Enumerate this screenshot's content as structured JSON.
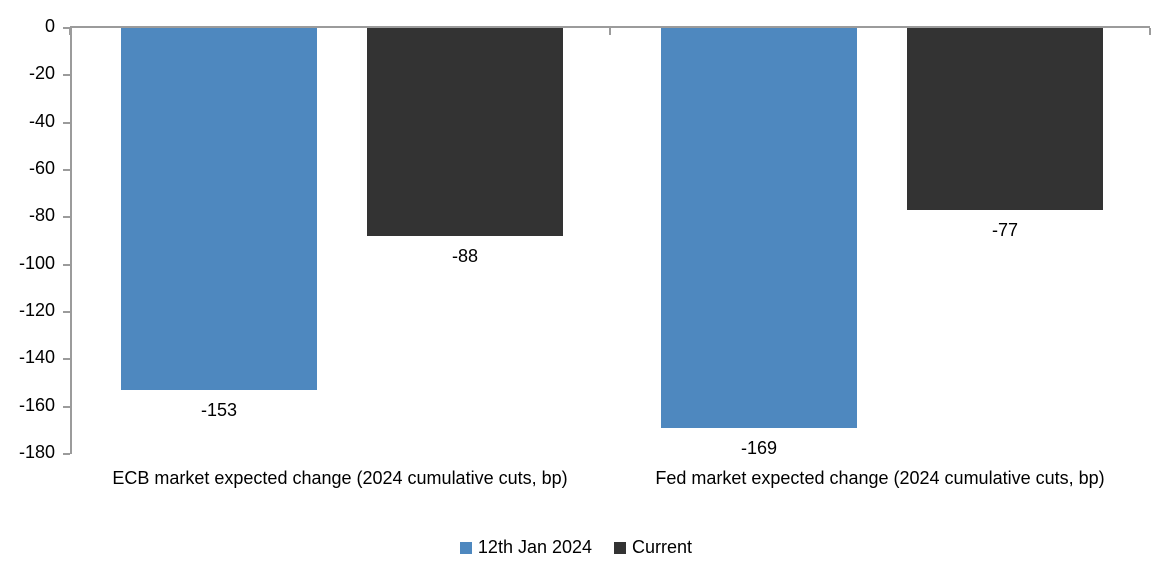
{
  "chart_data": {
    "type": "bar",
    "title": "",
    "categories": [
      "ECB market expected change (2024 cumulative cuts, bp)",
      "Fed market expected change (2024 cumulative cuts, bp)"
    ],
    "series": [
      {
        "name": "12th Jan 2024",
        "color": "#4E88BF",
        "values": [
          -153,
          -169
        ]
      },
      {
        "name": "Current",
        "color": "#333333",
        "values": [
          -88,
          -77
        ]
      }
    ],
    "ylim": [
      -180,
      0
    ],
    "ytick_interval": 20,
    "yticks": [
      0,
      -20,
      -40,
      -60,
      -80,
      -100,
      -120,
      -140,
      -160,
      -180
    ],
    "data_labels": true,
    "legend_position": "bottom",
    "grid": false,
    "axis_color": "#9B9B9B",
    "text_color": "#000000"
  }
}
